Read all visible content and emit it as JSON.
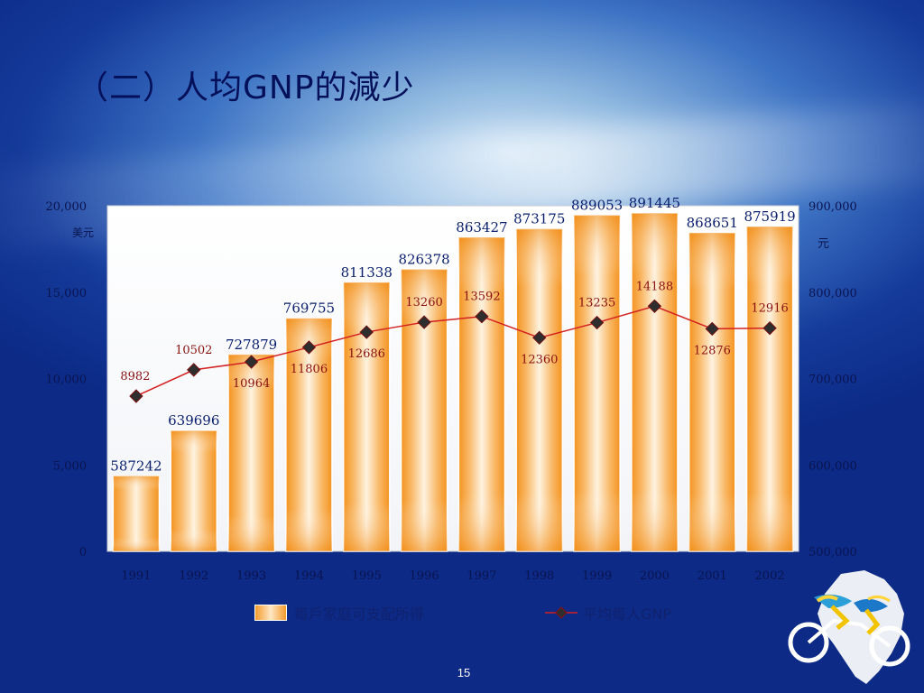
{
  "slide": {
    "title": "（二）人均GNP的減少",
    "page_number": "15"
  },
  "chart_data": {
    "type": "bar",
    "categories": [
      "1991",
      "1992",
      "1993",
      "1994",
      "1995",
      "1996",
      "1997",
      "1998",
      "1999",
      "2000",
      "2001",
      "2002"
    ],
    "series": [
      {
        "name": "每戶家庭可支配所得",
        "type": "bar",
        "axis": "right",
        "values": [
          587242,
          639696,
          727879,
          769755,
          811338,
          826378,
          863427,
          873175,
          889053,
          891445,
          868651,
          875919
        ],
        "labels": [
          "587242",
          "639696",
          "727879",
          "769755",
          "811338",
          "826378",
          "863427",
          "873175",
          "889053",
          "891445",
          "868651",
          "875919"
        ]
      },
      {
        "name": "平均每人GNP",
        "type": "line",
        "axis": "left",
        "values": [
          8982,
          10502,
          10964,
          11806,
          12686,
          13260,
          13592,
          12360,
          13235,
          14188,
          12876,
          12916
        ],
        "labels": [
          "8982",
          "10502",
          "10964",
          "11806",
          "12686",
          "13260",
          "13592",
          "12360",
          "13235",
          "14188",
          "12876",
          "12916"
        ]
      }
    ],
    "y_left": {
      "unit": "美元",
      "range": [
        0,
        20000
      ],
      "ticks": [
        0,
        5000,
        10000,
        15000,
        20000
      ],
      "tick_labels": [
        "0",
        "5,000",
        "10,000",
        "15,000",
        "20,000"
      ]
    },
    "y_right": {
      "unit": "元",
      "range": [
        500000,
        900000
      ],
      "ticks": [
        500000,
        600000,
        700000,
        800000,
        900000
      ],
      "tick_labels": [
        "500,000",
        "600,000",
        "700,000",
        "800,000",
        "900,000"
      ]
    },
    "grid": false,
    "legend_position": "bottom",
    "colors": {
      "bar": "#f59a2a",
      "bar_center": "#fef3e0",
      "line": "#d42020",
      "marker": "#2e2e2e",
      "bar_label": "#0a1f6e",
      "line_label": "#8a1010",
      "axis_text": "#0a1450"
    }
  }
}
